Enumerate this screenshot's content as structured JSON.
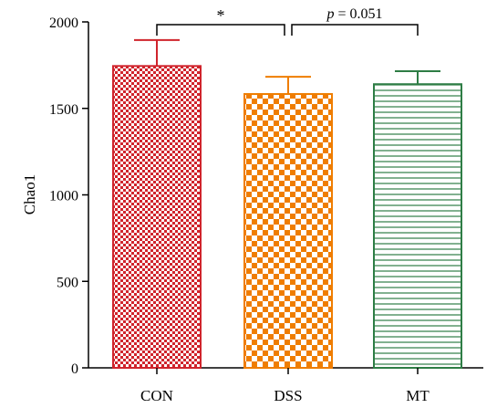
{
  "chart_data": {
    "type": "bar",
    "categories": [
      "CON",
      "DSS",
      "MT"
    ],
    "values": [
      1745,
      1583,
      1640
    ],
    "errors": [
      150,
      100,
      75
    ],
    "ylabel": "Chao1",
    "xlabel": "",
    "ylim": [
      0,
      2000
    ],
    "yticks": [
      "0",
      "500",
      "1000",
      "1500",
      "2000"
    ],
    "grid": false,
    "patterns": [
      "fine-checker",
      "coarse-checker",
      "horizontal-lines"
    ],
    "colors": [
      "#d0242c",
      "#ef7d00",
      "#2e7d45"
    ],
    "annotations": [
      {
        "from": "CON",
        "to": "DSS",
        "prefix": "",
        "text": "*"
      },
      {
        "from": "DSS",
        "to": "MT",
        "prefix": "p",
        "text": " = 0.051"
      }
    ]
  }
}
